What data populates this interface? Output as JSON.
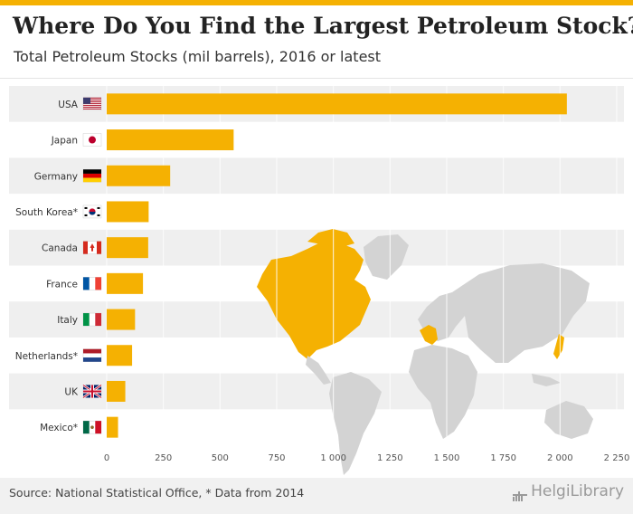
{
  "header": {
    "title": "Where Do You Find the Largest Petroleum Stock?",
    "subtitle": "Total Petroleum Stocks (mil barrels), 2016 or latest"
  },
  "footer": {
    "source": "Source: National Statistical Office, * Data from 2014",
    "logo": "HelgiLibrary"
  },
  "colors": {
    "bar": "#f5b102",
    "band": "#ececec",
    "map_land": "#d3d3d3",
    "map_highlight": "#f5b102",
    "accent": "#f5b102"
  },
  "chart_data": {
    "type": "bar",
    "orientation": "horizontal",
    "categories": [
      "USA",
      "Japan",
      "Germany",
      "South Korea*",
      "Canada",
      "France",
      "Italy",
      "Netherlands*",
      "UK",
      "Mexico*"
    ],
    "flags": [
      "us-flag-icon",
      "japan-flag-icon",
      "germany-flag-icon",
      "south-korea-flag-icon",
      "canada-flag-icon",
      "france-flag-icon",
      "italy-flag-icon",
      "netherlands-flag-icon",
      "uk-flag-icon",
      "mexico-flag-icon"
    ],
    "values": [
      2030,
      560,
      280,
      185,
      183,
      160,
      125,
      112,
      82,
      50
    ],
    "xlim": [
      0,
      2250
    ],
    "xticks": [
      0,
      250,
      500,
      750,
      1000,
      1250,
      1500,
      1750,
      2000,
      2250
    ],
    "xtick_labels": [
      "0",
      "250",
      "500",
      "750",
      "1 000",
      "1 250",
      "1 500",
      "1 750",
      "2 000",
      "2 250"
    ],
    "title": "Where Do You Find the Largest Petroleum Stock?",
    "xlabel": "",
    "ylabel": "",
    "grid": true,
    "legend": "none",
    "background_map": "world map with ranked countries highlighted"
  }
}
